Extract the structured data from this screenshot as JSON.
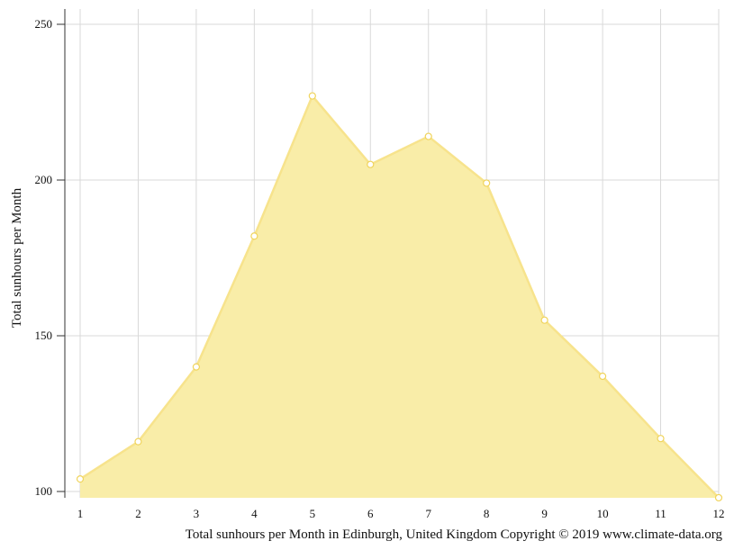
{
  "chart_data": {
    "type": "area",
    "x": [
      1,
      2,
      3,
      4,
      5,
      6,
      7,
      8,
      9,
      10,
      11,
      12
    ],
    "series": [
      {
        "values": [
          104,
          116,
          140,
          182,
          227,
          205,
          214,
          199,
          155,
          137,
          117,
          98
        ]
      }
    ],
    "xticks": [
      "1",
      "2",
      "3",
      "4",
      "5",
      "6",
      "7",
      "8",
      "9",
      "10",
      "11",
      "12"
    ],
    "yticks": [
      100,
      150,
      200,
      250
    ],
    "ylim": [
      100,
      250
    ],
    "xlim": [
      1,
      12
    ],
    "ylabel": "Total sunhours per Month",
    "caption": "Total sunhours per Month in Edinburgh, United Kingdom Copyright © 2019 www.climate-data.org",
    "grid": true,
    "colors": {
      "fill": "#f9eda8",
      "line": "#f7e38c",
      "marker_fill": "#ffffff",
      "marker_stroke": "#f0d45c",
      "grid": "#d9d9d9",
      "axis": "#333333"
    }
  }
}
